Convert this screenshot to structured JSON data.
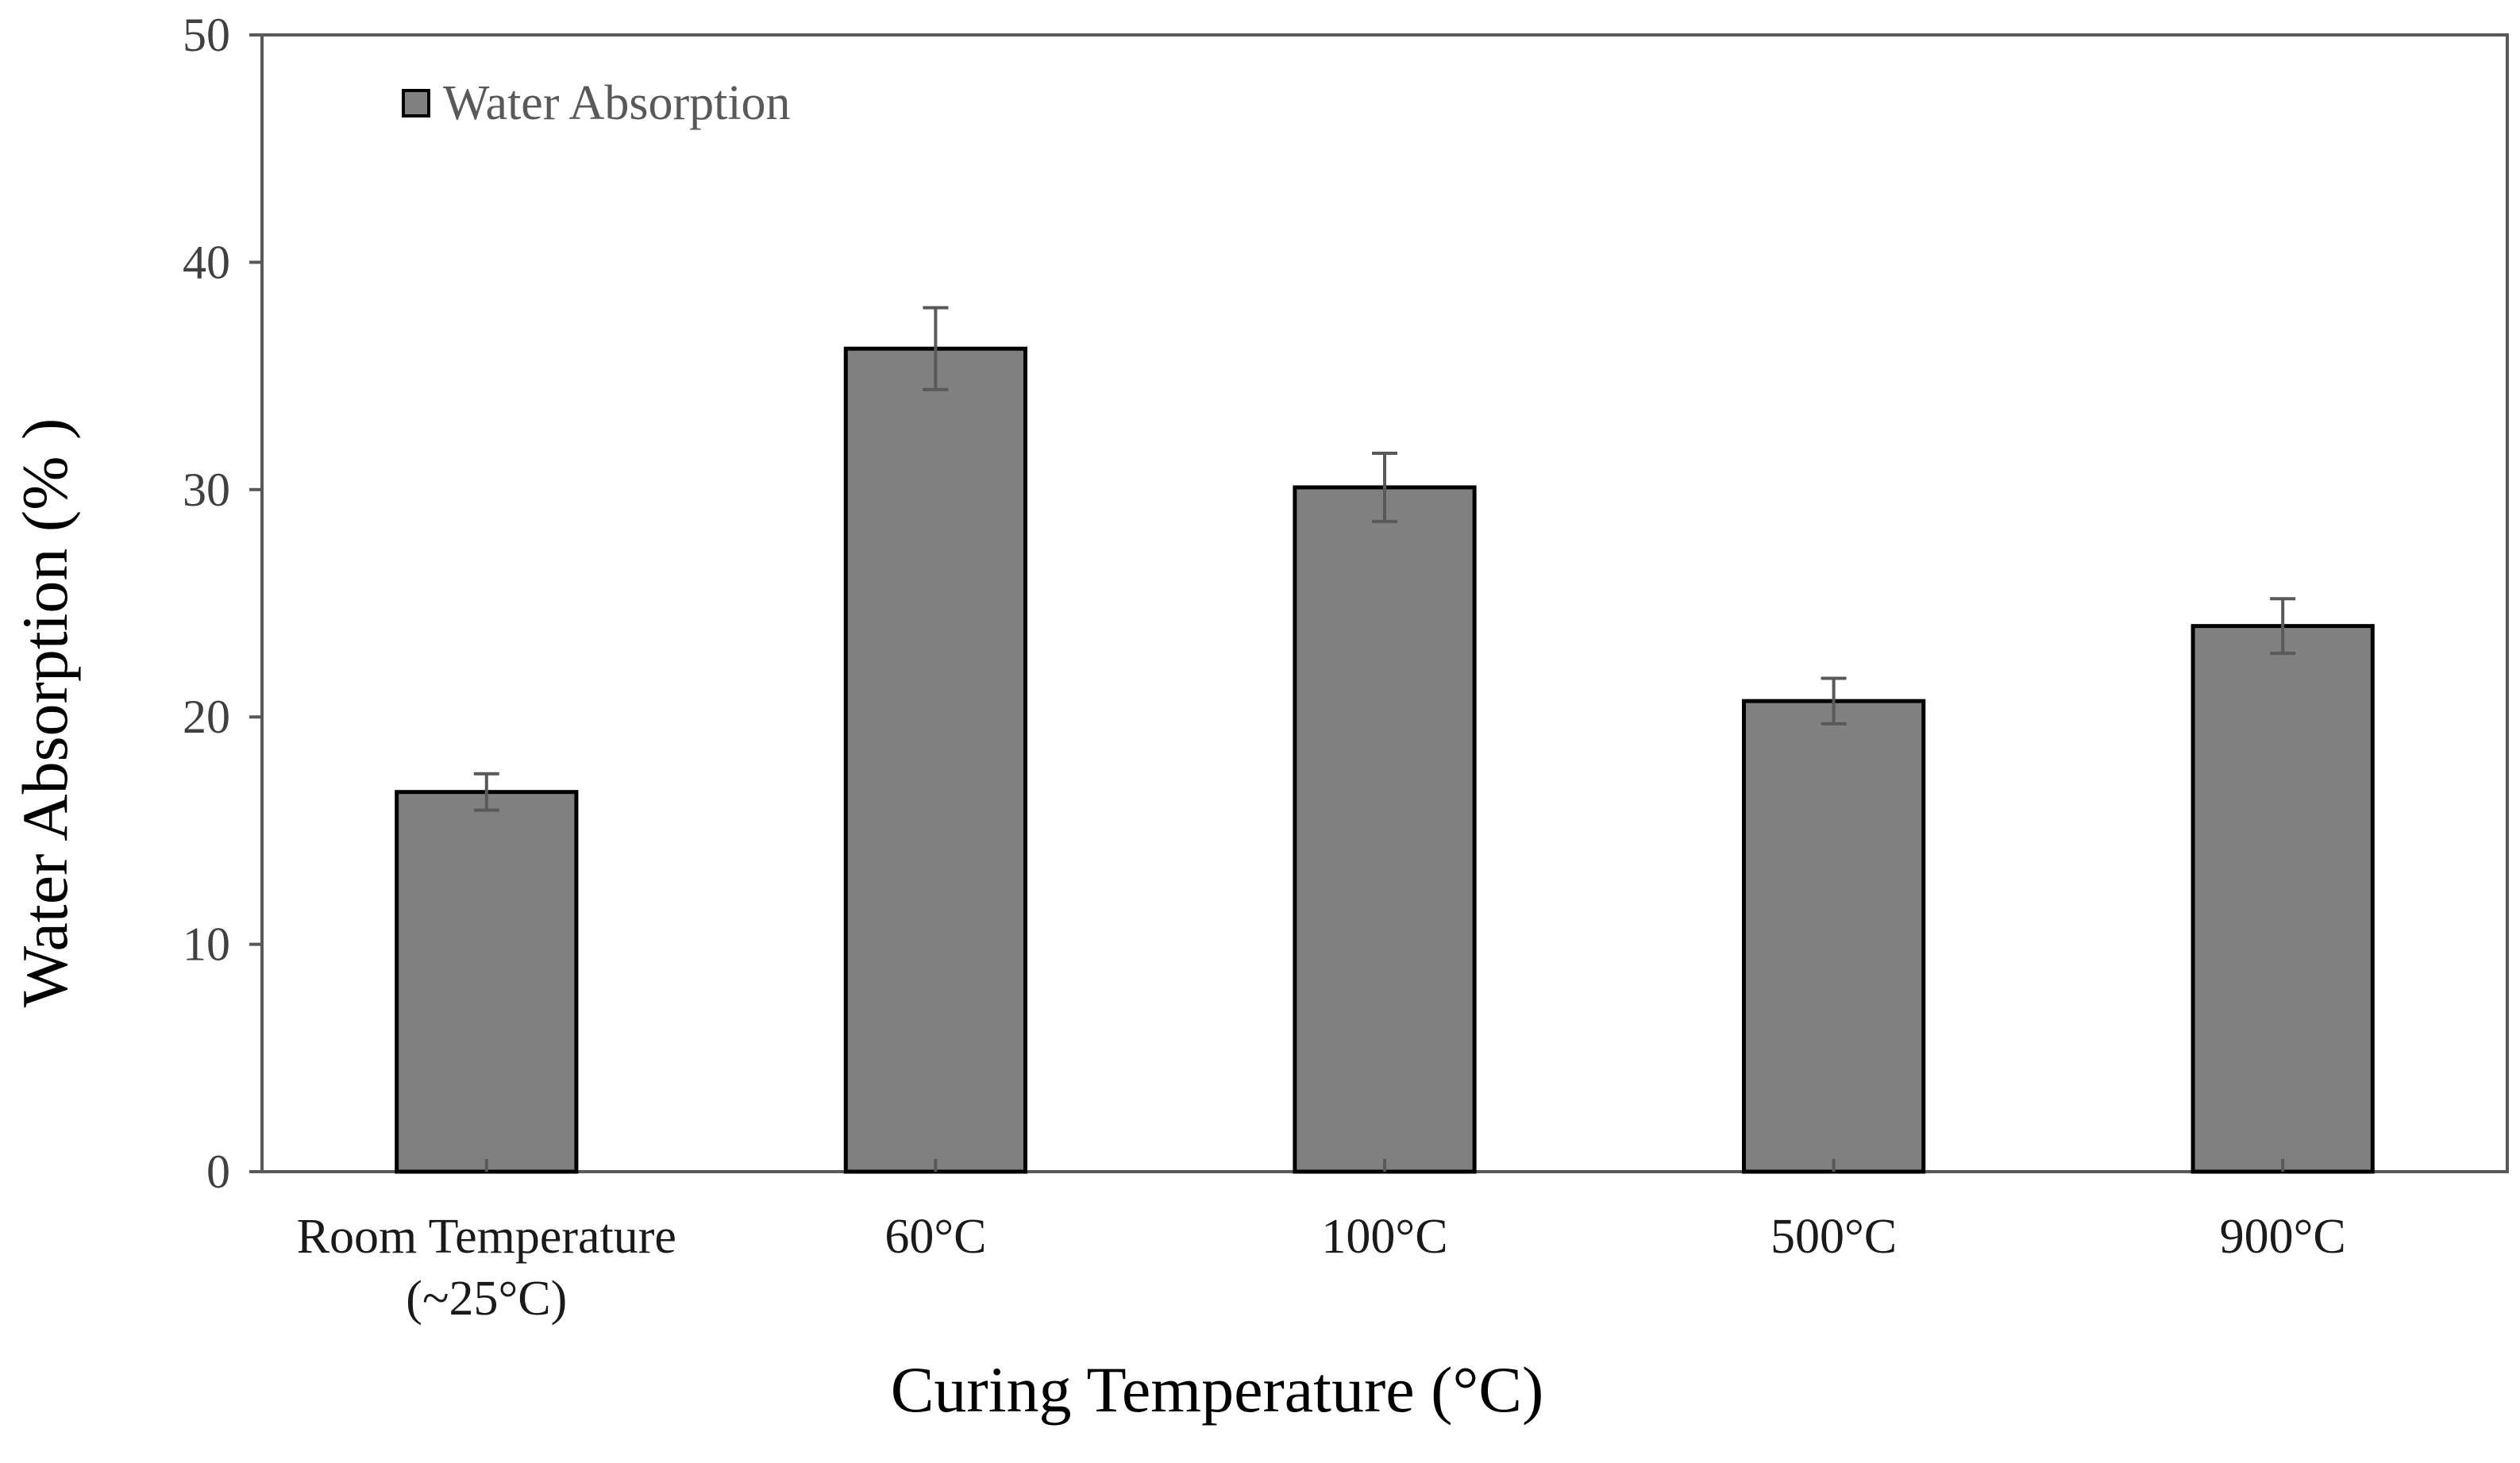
{
  "chart_data": {
    "type": "bar",
    "categories": [
      [
        "Room Temperature",
        "(~25°C)"
      ],
      [
        "60°C"
      ],
      [
        "100°C"
      ],
      [
        "500°C"
      ],
      [
        "900°C"
      ]
    ],
    "series": [
      {
        "name": "Water Absorption",
        "values": [
          16.7,
          36.2,
          30.1,
          20.7,
          24.0
        ],
        "errors": [
          0.8,
          1.8,
          1.5,
          1.0,
          1.2
        ]
      }
    ],
    "xlabel": "Curing Temperature (°C)",
    "ylabel": "Water Absorption (% )",
    "ylim": [
      0,
      50
    ],
    "yticks": [
      0,
      10,
      20,
      30,
      40,
      50
    ],
    "legend_position": "top-left",
    "grid": false,
    "colors": {
      "bar_fill": "#808080",
      "bar_stroke": "#000000",
      "error_bar": "#595959",
      "axis": "#595959"
    }
  }
}
